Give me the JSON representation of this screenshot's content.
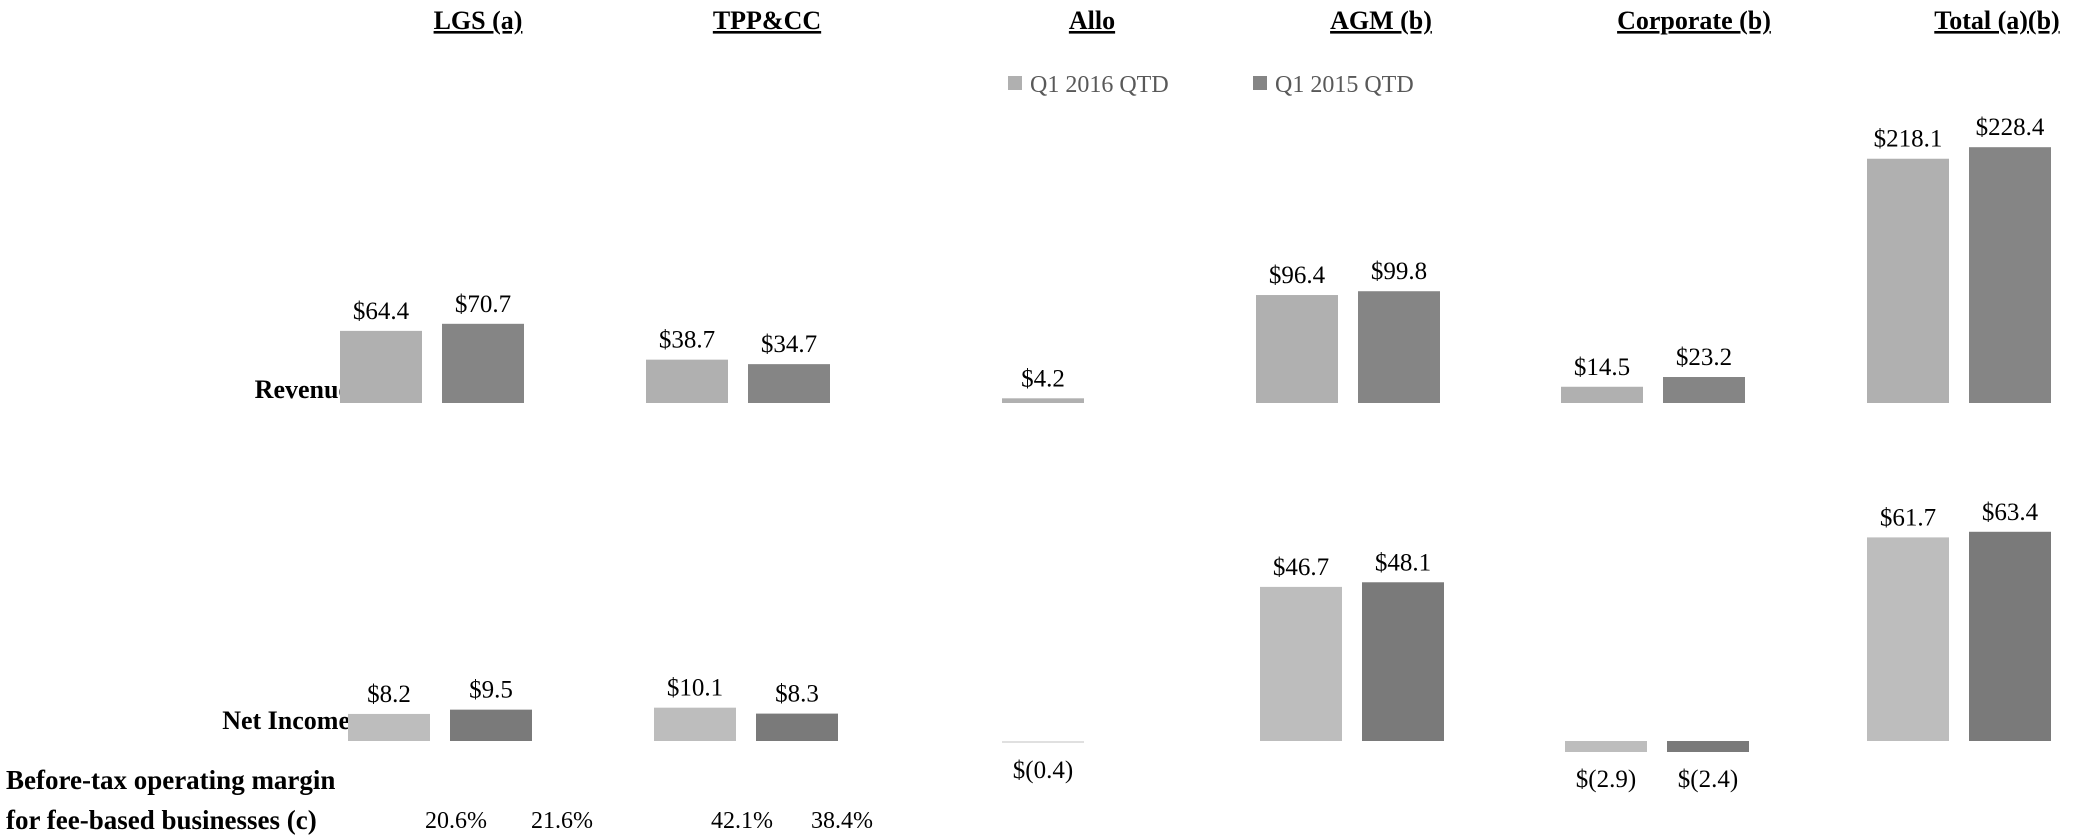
{
  "chart_data": {
    "type": "bar",
    "categories": [
      "LGS (a)",
      "TPP&CC",
      "Allo",
      "AGM (b)",
      "Corporate (b)",
      "Total (a)(b)"
    ],
    "legend": {
      "placement": "top-center",
      "entries": [
        {
          "name": "Q1 2016 QTD",
          "color": "#b0b0b0"
        },
        {
          "name": "Q1 2015 QTD",
          "color": "#858585"
        }
      ]
    },
    "rows": [
      {
        "label": "Revenue",
        "series": [
          {
            "name": "Q1 2016 QTD",
            "values": [
              64.4,
              38.7,
              4.2,
              96.4,
              14.5,
              218.1
            ],
            "labels": [
              "$64.4",
              "$38.7",
              "$4.2",
              "$96.4",
              "$14.5",
              "$218.1"
            ]
          },
          {
            "name": "Q1 2015 QTD",
            "values": [
              70.7,
              34.7,
              null,
              99.8,
              23.2,
              228.4
            ],
            "labels": [
              "$70.7",
              "$34.7",
              "",
              "$99.8",
              "$23.2",
              "$228.4"
            ]
          }
        ]
      },
      {
        "label": "Net Income",
        "series": [
          {
            "name": "Q1 2016 QTD",
            "values": [
              8.2,
              10.1,
              -0.4,
              46.7,
              -2.9,
              61.7
            ],
            "labels": [
              "$8.2",
              "$10.1",
              "$(0.4)",
              "$46.7",
              "$(2.9)",
              "$61.7"
            ]
          },
          {
            "name": "Q1 2015 QTD",
            "values": [
              9.5,
              8.3,
              null,
              48.1,
              -2.4,
              63.4
            ],
            "labels": [
              "$9.5",
              "$8.3",
              "",
              "$48.1",
              "$(2.4)",
              "$63.4"
            ]
          }
        ]
      }
    ],
    "colors": {
      "q1_2016": "#b0b0b0",
      "q1_2015": "#858585",
      "q1_2016_net": "#bdbdbd",
      "q1_2015_net": "#7a7a7a",
      "allo_net": "#e0e0e0"
    }
  },
  "footer": {
    "margin_label_line1": "Before-tax operating margin",
    "margin_label_line2": "for fee-based businesses (c)",
    "margins": [
      {
        "segment": "LGS (a)",
        "values": [
          "20.6%",
          "21.6%"
        ]
      },
      {
        "segment": "TPP&CC",
        "values": [
          "42.1%",
          "38.4%"
        ]
      }
    ]
  }
}
